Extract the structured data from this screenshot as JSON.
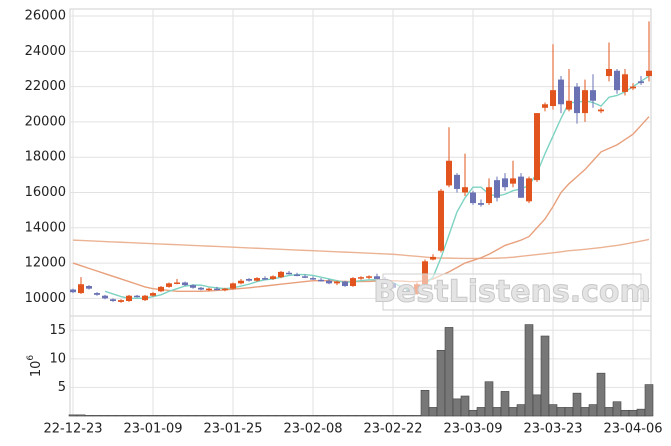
{
  "chart_data": {
    "type": "candlestick",
    "categories": [
      "22-12-23",
      null,
      null,
      null,
      null,
      null,
      null,
      null,
      null,
      null,
      "23-01-09",
      null,
      null,
      null,
      null,
      null,
      null,
      null,
      null,
      null,
      "23-01-25",
      null,
      null,
      null,
      null,
      null,
      null,
      null,
      null,
      null,
      "23-02-08",
      null,
      null,
      null,
      null,
      null,
      null,
      null,
      null,
      null,
      "23-02-22",
      null,
      null,
      null,
      null,
      null,
      null,
      null,
      null,
      null,
      "23-03-09",
      null,
      null,
      null,
      null,
      null,
      null,
      null,
      null,
      null,
      "23-03-23",
      null,
      null,
      null,
      null,
      null,
      null,
      null,
      null,
      null,
      "23-04-06",
      null,
      null
    ],
    "open": [
      10500,
      10300,
      10700,
      10300,
      10150,
      9950,
      9800,
      9850,
      10150,
      9900,
      10150,
      10400,
      10650,
      10850,
      10900,
      10750,
      10600,
      10500,
      10550,
      10500,
      10550,
      10850,
      11100,
      11000,
      11150,
      11100,
      11200,
      11450,
      11350,
      11250,
      11150,
      11050,
      11000,
      10850,
      10950,
      10700,
      11150,
      11200,
      11250,
      11100,
      10850,
      10600,
      10450,
      10250,
      10800,
      12200,
      12700,
      16400,
      17000,
      16000,
      16000,
      15400,
      15400,
      16700,
      16800,
      16500,
      16900,
      15500,
      16700,
      20800,
      20900,
      22400,
      20700,
      22000,
      20500,
      21800,
      20600,
      22600,
      22900,
      21700,
      21900,
      22300,
      22600
    ],
    "high": [
      10550,
      11200,
      10750,
      10350,
      10200,
      10000,
      9950,
      10200,
      10200,
      10200,
      10350,
      10700,
      10900,
      11100,
      10950,
      10800,
      10650,
      10600,
      10650,
      10600,
      10900,
      11100,
      11150,
      11200,
      11250,
      11300,
      11550,
      11550,
      11450,
      11350,
      11250,
      11150,
      11100,
      11000,
      11000,
      11200,
      11250,
      11300,
      11400,
      11200,
      10900,
      10700,
      10500,
      10900,
      12200,
      12500,
      16200,
      19700,
      17100,
      18200,
      16100,
      15600,
      16800,
      16900,
      17100,
      17800,
      17100,
      16900,
      20500,
      21100,
      24400,
      22600,
      23000,
      22200,
      22400,
      22700,
      20800,
      24500,
      23000,
      23000,
      22200,
      22600,
      25700
    ],
    "low": [
      10300,
      10250,
      10500,
      10150,
      9950,
      9800,
      9750,
      9800,
      10050,
      9850,
      10100,
      10350,
      10600,
      10800,
      10700,
      10550,
      10450,
      10400,
      10450,
      10400,
      10500,
      10800,
      10950,
      10950,
      11050,
      11050,
      11150,
      11350,
      11250,
      11150,
      11050,
      10950,
      10800,
      10750,
      10650,
      10650,
      11050,
      11100,
      11050,
      10800,
      10550,
      10400,
      10200,
      10200,
      10700,
      12150,
      12600,
      16300,
      16000,
      15800,
      15300,
      15200,
      15300,
      15500,
      16100,
      16300,
      15700,
      15400,
      16600,
      20600,
      20700,
      20500,
      20600,
      19900,
      20000,
      20800,
      20500,
      22300,
      21600,
      21500,
      21800,
      22100,
      22300
    ],
    "close": [
      10350,
      10800,
      10550,
      10200,
      10000,
      9850,
      9900,
      10150,
      10100,
      10150,
      10300,
      10650,
      10850,
      10900,
      10750,
      10600,
      10500,
      10550,
      10500,
      10550,
      10850,
      11000,
      11000,
      11150,
      11100,
      11250,
      11500,
      11400,
      11300,
      11200,
      11100,
      11000,
      10850,
      10950,
      10700,
      11150,
      11200,
      11250,
      11100,
      10850,
      10600,
      10450,
      10250,
      10800,
      12100,
      12350,
      16100,
      17800,
      16200,
      16300,
      15400,
      15300,
      16300,
      15700,
      16300,
      16800,
      15700,
      16800,
      20500,
      21000,
      21800,
      21000,
      21200,
      20500,
      21800,
      21200,
      20700,
      23000,
      21800,
      22700,
      22000,
      22200,
      22900
    ],
    "up_color": "#e2541e",
    "down_color": "#6a72b4",
    "series": [
      {
        "color": "#ebb394",
        "values": [
          13300,
          13280,
          13260,
          13240,
          13220,
          13200,
          13180,
          13160,
          13140,
          13120,
          13100,
          13080,
          13060,
          13040,
          13020,
          13000,
          12980,
          12960,
          12940,
          12920,
          12900,
          12880,
          12860,
          12840,
          12820,
          12800,
          12780,
          12760,
          12740,
          12720,
          12700,
          12680,
          12660,
          12640,
          12620,
          12600,
          12580,
          12560,
          12540,
          12520,
          12500,
          12460,
          12420,
          12380,
          12340,
          12300,
          12280,
          12280,
          12270,
          12260,
          12260,
          12260,
          12270,
          12280,
          12300,
          12330,
          12380,
          12430,
          12480,
          12530,
          12580,
          12640,
          12700,
          12740,
          12780,
          12830,
          12880,
          12940,
          13000,
          13080,
          13160,
          13250,
          13340
        ]
      },
      {
        "color": "#e8a07c",
        "values": [
          12000,
          11850,
          11700,
          11550,
          11400,
          11250,
          11100,
          10950,
          10800,
          10650,
          10550,
          10500,
          10450,
          10400,
          10400,
          10400,
          10400,
          10420,
          10450,
          10480,
          10520,
          10560,
          10600,
          10650,
          10700,
          10750,
          10800,
          10850,
          10900,
          10950,
          11000,
          11000,
          11000,
          10980,
          10960,
          10950,
          10950,
          10960,
          10980,
          11000,
          11000,
          10980,
          10950,
          10950,
          11000,
          11100,
          11300,
          11500,
          11750,
          12000,
          12150,
          12300,
          12500,
          12750,
          13000,
          13150,
          13300,
          13500,
          14000,
          14500,
          15200,
          16000,
          16500,
          16900,
          17300,
          17800,
          18300,
          18500,
          18700,
          19000,
          19300,
          19800,
          20300
        ]
      },
      {
        "color": "#7dd3c2",
        "values": [
          null,
          null,
          null,
          null,
          10400,
          10250,
          10100,
          10000,
          10000,
          10000,
          10100,
          10200,
          10400,
          10550,
          10700,
          10750,
          10750,
          10650,
          10600,
          10550,
          10600,
          10700,
          10800,
          10950,
          11050,
          11100,
          11200,
          11300,
          11350,
          11350,
          11300,
          11200,
          11100,
          11000,
          10900,
          10950,
          11000,
          11050,
          11050,
          11000,
          10900,
          10650,
          10450,
          10450,
          10800,
          11200,
          12300,
          13600,
          14900,
          15700,
          16300,
          16300,
          15900,
          15800,
          15900,
          16100,
          16200,
          16400,
          17100,
          18200,
          19200,
          20200,
          21100,
          21100,
          21200,
          21100,
          20900,
          21400,
          21500,
          21700,
          22000,
          22300,
          22600
        ]
      }
    ],
    "ylim": [
      9000,
      26400
    ],
    "yticks": [
      10000,
      12000,
      14000,
      16000,
      18000,
      20000,
      22000,
      24000,
      26000
    ],
    "grid": true,
    "volume": {
      "color": "#777777",
      "values": [
        0.2,
        0.2,
        0.1,
        0.1,
        0.1,
        0.1,
        0.1,
        0.1,
        0.1,
        0.1,
        0.1,
        0.1,
        0.1,
        0.1,
        0.1,
        0.1,
        0.1,
        0.1,
        0.1,
        0.1,
        0.1,
        0.1,
        0.1,
        0.1,
        0.1,
        0.1,
        0.1,
        0.1,
        0.1,
        0.1,
        0.1,
        0.1,
        0.1,
        0.1,
        0.1,
        0.1,
        0.1,
        0.1,
        0.1,
        0.1,
        0.1,
        0.1,
        0.1,
        0.1,
        4.5,
        1.5,
        11.5,
        15.5,
        3,
        3.5,
        1,
        1.5,
        6,
        1.5,
        4.3,
        1.5,
        2,
        16,
        3.7,
        14,
        2,
        1.5,
        1.5,
        4,
        1.5,
        2,
        7.5,
        1.5,
        2.5,
        1,
        1,
        1.2,
        5.5
      ],
      "ylim": [
        0,
        17.5
      ],
      "yticks": [
        5,
        10,
        15
      ],
      "y_label_base": "10",
      "y_label_exponent": "6"
    },
    "watermark": "BestListens.com"
  }
}
